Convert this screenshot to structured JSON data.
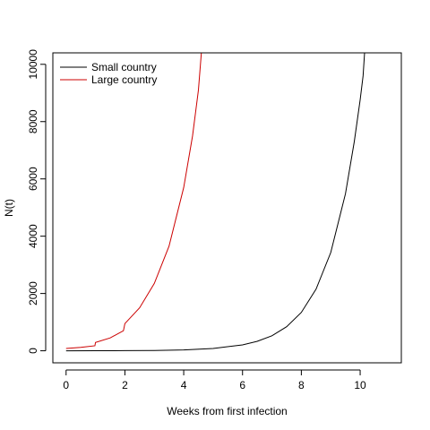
{
  "chart_data": {
    "type": "line",
    "title": "",
    "xlabel": "Weeks from first infection",
    "ylabel": "N(t)",
    "xlim": [
      -0.45,
      11.4
    ],
    "ylim": [
      -420,
      10400
    ],
    "x_ticks": [
      0,
      2,
      4,
      6,
      8,
      10
    ],
    "y_ticks": [
      0,
      2000,
      4000,
      6000,
      8000,
      10000
    ],
    "grid": false,
    "legend_position": "top-left",
    "series": [
      {
        "name": "Small country",
        "color": "#000000",
        "points": [
          [
            0,
            0
          ],
          [
            1,
            2
          ],
          [
            2,
            5
          ],
          [
            3,
            12
          ],
          [
            4,
            30
          ],
          [
            5,
            80
          ],
          [
            6,
            205
          ],
          [
            6.5,
            330
          ],
          [
            7,
            525
          ],
          [
            7.5,
            840
          ],
          [
            8,
            1340
          ],
          [
            8.5,
            2150
          ],
          [
            9,
            3430
          ],
          [
            9.5,
            5480
          ],
          [
            9.8,
            7300
          ],
          [
            10,
            8760
          ],
          [
            10.1,
            9600
          ],
          [
            10.15,
            10400
          ]
        ]
      },
      {
        "name": "Large country",
        "color": "#cc0000",
        "points": [
          [
            0,
            80
          ],
          [
            0.5,
            120
          ],
          [
            0.98,
            175
          ],
          [
            1.0,
            290
          ],
          [
            1.5,
            450
          ],
          [
            1.95,
            700
          ],
          [
            2.0,
            950
          ],
          [
            2.5,
            1500
          ],
          [
            3.0,
            2350
          ],
          [
            3.5,
            3650
          ],
          [
            4.0,
            5700
          ],
          [
            4.3,
            7500
          ],
          [
            4.5,
            9100
          ],
          [
            4.6,
            10400
          ]
        ]
      }
    ]
  }
}
